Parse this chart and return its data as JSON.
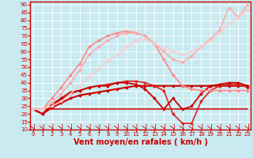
{
  "xlabel": "Vent moyen/en rafales ( km/h )",
  "background_color": "#c8eaf0",
  "grid_color": "#ffffff",
  "xlim": [
    -0.3,
    23.3
  ],
  "ylim": [
    10,
    92
  ],
  "yticks": [
    10,
    15,
    20,
    25,
    30,
    35,
    40,
    45,
    50,
    55,
    60,
    65,
    70,
    75,
    80,
    85,
    90
  ],
  "xticks": [
    0,
    1,
    2,
    3,
    4,
    5,
    6,
    7,
    8,
    9,
    10,
    11,
    12,
    13,
    14,
    15,
    16,
    17,
    18,
    19,
    20,
    21,
    22,
    23
  ],
  "lines": [
    {
      "x": [
        0,
        1,
        2,
        3,
        4,
        5,
        6,
        7,
        8,
        9,
        10,
        11,
        12,
        13,
        14,
        15,
        16,
        17,
        18,
        19,
        20,
        21,
        22,
        23
      ],
      "y": [
        23,
        23,
        23,
        23,
        23,
        23,
        23,
        23,
        23,
        23,
        23,
        23,
        23,
        23,
        23,
        23,
        23,
        23,
        23,
        23,
        23,
        23,
        23,
        23
      ],
      "color": "#cc0000",
      "lw": 1.1,
      "marker": null,
      "ms": 0
    },
    {
      "x": [
        0,
        1,
        2,
        3,
        4,
        5,
        6,
        7,
        8,
        9,
        10,
        11,
        12,
        13,
        14,
        15,
        16,
        17,
        18,
        19,
        20,
        21,
        22,
        23
      ],
      "y": [
        23,
        20,
        24,
        27,
        30,
        32,
        33,
        34,
        35,
        36,
        37,
        38,
        38,
        38,
        38,
        38,
        38,
        38,
        38,
        38,
        38,
        38,
        38,
        38
      ],
      "color": "#cc0000",
      "lw": 1.5,
      "marker": "D",
      "ms": 2
    },
    {
      "x": [
        0,
        1,
        2,
        3,
        4,
        5,
        6,
        7,
        8,
        9,
        10,
        11,
        12,
        13,
        14,
        15,
        16,
        17,
        18,
        19,
        20,
        21,
        22,
        23
      ],
      "y": [
        23,
        20,
        25,
        29,
        33,
        35,
        37,
        38,
        39,
        40,
        41,
        41,
        40,
        38,
        35,
        20,
        14,
        14,
        28,
        35,
        38,
        39,
        39,
        37
      ],
      "color": "#dd2222",
      "lw": 1.2,
      "marker": "D",
      "ms": 2
    },
    {
      "x": [
        0,
        1,
        2,
        3,
        4,
        5,
        6,
        7,
        8,
        9,
        10,
        11,
        12,
        13,
        14,
        15,
        16,
        17,
        18,
        19,
        20,
        21,
        22,
        23
      ],
      "y": [
        23,
        20,
        26,
        30,
        34,
        35,
        37,
        38,
        38,
        40,
        40,
        39,
        36,
        30,
        23,
        30,
        23,
        25,
        33,
        38,
        39,
        40,
        40,
        38
      ],
      "color": "#cc0000",
      "lw": 1.3,
      "marker": "D",
      "ms": 2
    },
    {
      "x": [
        0,
        1,
        2,
        3,
        4,
        5,
        6,
        7,
        8,
        9,
        10,
        11,
        12,
        13,
        14,
        15,
        16,
        17,
        18,
        19,
        20,
        21,
        22,
        23
      ],
      "y": [
        23,
        23,
        30,
        37,
        45,
        52,
        63,
        67,
        70,
        72,
        73,
        72,
        70,
        65,
        55,
        45,
        38,
        36,
        35,
        35,
        35,
        35,
        35,
        35
      ],
      "color": "#ff8888",
      "lw": 1.2,
      "marker": "D",
      "ms": 2
    },
    {
      "x": [
        0,
        1,
        2,
        3,
        4,
        5,
        6,
        7,
        8,
        9,
        10,
        11,
        12,
        13,
        14,
        15,
        16,
        17,
        18,
        19,
        20,
        21,
        22,
        23
      ],
      "y": [
        23,
        23,
        27,
        33,
        40,
        48,
        58,
        63,
        67,
        70,
        72,
        72,
        70,
        65,
        60,
        55,
        53,
        57,
        63,
        68,
        74,
        88,
        82,
        90
      ],
      "color": "#ffaaaa",
      "lw": 1.1,
      "marker": "D",
      "ms": 2
    },
    {
      "x": [
        0,
        1,
        2,
        3,
        4,
        5,
        6,
        7,
        8,
        9,
        10,
        11,
        12,
        13,
        14,
        15,
        16,
        17,
        18,
        19,
        20,
        21,
        22,
        23
      ],
      "y": [
        23,
        23,
        25,
        28,
        33,
        38,
        44,
        49,
        54,
        58,
        63,
        67,
        68,
        65,
        62,
        60,
        58,
        60,
        63,
        67,
        72,
        78,
        82,
        87
      ],
      "color": "#ffcccc",
      "lw": 1.0,
      "marker": "D",
      "ms": 2
    }
  ],
  "axis_color": "#cc0000",
  "tick_color": "#cc0000",
  "label_color": "#cc0000",
  "xlabel_fontsize": 7,
  "tick_fontsize": 5
}
